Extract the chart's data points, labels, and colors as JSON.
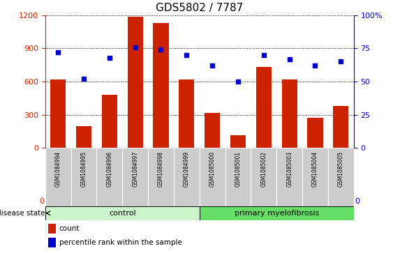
{
  "title": "GDS5802 / 7787",
  "samples": [
    "GSM1084994",
    "GSM1084995",
    "GSM1084996",
    "GSM1084997",
    "GSM1084998",
    "GSM1084999",
    "GSM1085000",
    "GSM1085001",
    "GSM1085002",
    "GSM1085003",
    "GSM1085004",
    "GSM1085005"
  ],
  "counts": [
    620,
    195,
    480,
    1185,
    1130,
    620,
    320,
    115,
    730,
    620,
    270,
    380
  ],
  "percentiles": [
    72,
    52,
    68,
    76,
    74,
    70,
    62,
    50,
    70,
    67,
    62,
    65
  ],
  "bar_color": "#cc2200",
  "dot_color": "#0000cc",
  "ylim_left": [
    0,
    1200
  ],
  "ylim_right": [
    0,
    100
  ],
  "yticks_left": [
    0,
    300,
    600,
    900,
    1200
  ],
  "yticks_right": [
    0,
    25,
    50,
    75,
    100
  ],
  "control_count": 6,
  "control_label": "control",
  "disease_label": "primary myelofibrosis",
  "disease_state_label": "disease state",
  "legend_count_label": "count",
  "legend_pct_label": "percentile rank within the sample",
  "control_color": "#ccf5cc",
  "disease_color": "#66dd66",
  "tick_bg_color": "#cccccc",
  "grid_color": "#000000",
  "left_axis_color": "#cc2200",
  "right_axis_color": "#0000cc",
  "bar_width": 0.6,
  "tick_label_fontsize": 5.5,
  "title_fontsize": 11
}
